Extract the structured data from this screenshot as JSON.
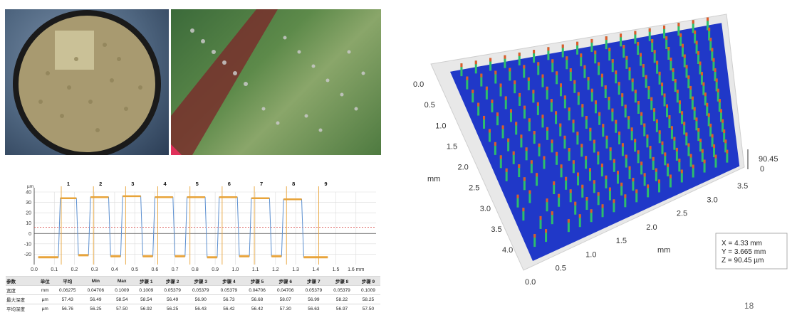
{
  "page_number": "18",
  "photos": {
    "left_photo": "wafer-photo",
    "right_photo": "pcb-closeup-photo"
  },
  "colors": {
    "trace_blue": "#5b8fd0",
    "marker_orange": "#e8a43a",
    "threshold_red": "#d9534f",
    "surface_blue": "#2038c8",
    "grid": "#dcdcdc"
  },
  "chart_data": [
    {
      "type": "line",
      "y_unit": "µm",
      "x_unit": "mm",
      "ylim": [
        -30,
        40
      ],
      "xlim": [
        0,
        1.7
      ],
      "y_ticks": [
        "40",
        "30",
        "20",
        "10",
        "0",
        "-10",
        "-20"
      ],
      "x_ticks": [
        "0.0",
        "0.1",
        "0.2",
        "0.3",
        "0.4",
        "0.5",
        "0.6",
        "0.7",
        "0.8",
        "0.9",
        "1.0",
        "1.1",
        "1.2",
        "1.3",
        "1.4",
        "1.5",
        "1.6 mm"
      ],
      "step_markers": [
        "1",
        "2",
        "3",
        "4",
        "5",
        "6",
        "7",
        "8",
        "9"
      ],
      "step_marker_x": [
        0.17,
        0.33,
        0.49,
        0.65,
        0.81,
        0.97,
        1.13,
        1.29,
        1.45
      ],
      "threshold": 6,
      "grid": true,
      "series": [
        {
          "values_x": [
            0.02,
            0.12,
            0.13,
            0.21,
            0.22,
            0.27,
            0.28,
            0.37,
            0.38,
            0.43,
            0.44,
            0.53,
            0.54,
            0.59,
            0.6,
            0.69,
            0.7,
            0.75,
            0.76,
            0.85,
            0.86,
            0.91,
            0.92,
            1.01,
            1.02,
            1.07,
            1.08,
            1.17,
            1.18,
            1.23,
            1.24,
            1.33,
            1.34,
            1.46
          ],
          "values_y": [
            -23,
            -23,
            34,
            34,
            -21,
            -21,
            35,
            35,
            -22,
            -22,
            36,
            36,
            -22,
            -22,
            35,
            35,
            -22,
            -22,
            35,
            35,
            -23,
            -23,
            35,
            35,
            -22,
            -22,
            34,
            34,
            -22,
            -22,
            33,
            33,
            -23,
            -23
          ]
        }
      ],
      "table": {
        "headers": [
          "参数",
          "单位",
          "平均",
          "Min",
          "Max",
          "步骤 1",
          "步骤 2",
          "步骤 3",
          "步骤 4",
          "步骤 5",
          "步骤 6",
          "步骤 7",
          "步骤 8",
          "步骤 9"
        ],
        "rows": [
          [
            "宽度",
            "mm",
            "0.06275",
            "0.04706",
            "0.1009",
            "0.1009",
            "0.05379",
            "0.05379",
            "0.05379",
            "0.04706",
            "0.04706",
            "0.05379",
            "0.05379",
            "0.1009"
          ],
          [
            "最大深度",
            "µm",
            "57.43",
            "56.49",
            "58.54",
            "58.54",
            "56.49",
            "56.90",
            "56.73",
            "56.68",
            "58.07",
            "56.99",
            "58.22",
            "58.25"
          ],
          [
            "平均深度",
            "µm",
            "56.76",
            "56.25",
            "57.50",
            "56.92",
            "56.25",
            "56.43",
            "56.42",
            "56.42",
            "57.30",
            "56.63",
            "56.97",
            "57.50"
          ]
        ]
      }
    },
    {
      "type": "heatmap",
      "y_axis_label": "mm",
      "y_ticks": [
        "0.0",
        "0.5",
        "1.0",
        "1.5",
        "2.0",
        "2.5",
        "3.0",
        "3.5",
        "4.0"
      ],
      "x_axis_label": "mm",
      "x_ticks": [
        "0.0",
        "0.5",
        "1.0",
        "1.5",
        "2.0",
        "2.5",
        "3.0",
        "3.5"
      ],
      "z_ticks": [
        "90.45",
        "0"
      ],
      "readout": {
        "x": "X = 4.33 mm",
        "y": "Y = 3.665 mm",
        "z": "Z = 90.45 µm"
      }
    }
  ]
}
